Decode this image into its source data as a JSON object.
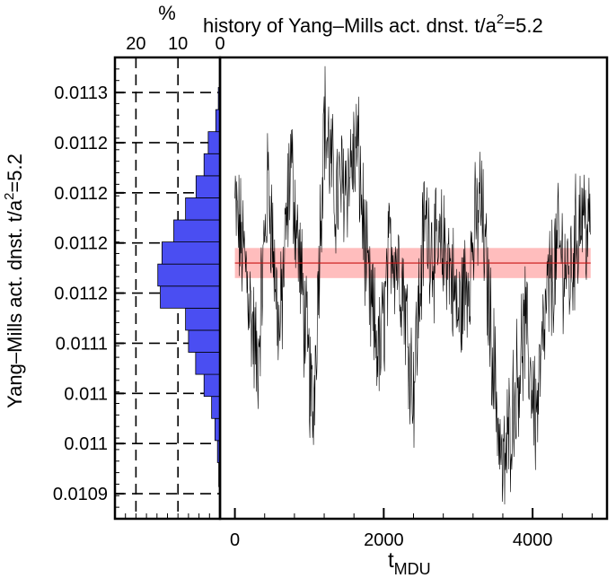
{
  "chart_data": [
    {
      "type": "bar",
      "orientation": "horizontal",
      "title": "%",
      "xlabel": "%",
      "ylabel": "Yang–Mills act. dnst. t/a",
      "ylabel_sup": "2",
      "ylabel_suffix": "=5.2",
      "x_ticks": [
        "20",
        "10",
        "0"
      ],
      "x_tick_values": [
        20,
        10,
        0
      ],
      "xlim": [
        25,
        0
      ],
      "y_tick_labels": [
        "0.0113",
        "0.0112",
        "0.0112",
        "0.0112",
        "0.0112",
        "0.0111",
        "0.011",
        "0.011",
        "0.0109"
      ],
      "y_tick_values": [
        0.011325,
        0.011275,
        0.011225,
        0.011175,
        0.011125,
        0.011075,
        0.011025,
        0.010975,
        0.010925
      ],
      "ylim": [
        0.0109,
        0.01136
      ],
      "bin_edges": [
        0.010932,
        0.010956,
        0.010978,
        0.011,
        0.011022,
        0.011044,
        0.011066,
        0.011088,
        0.01111,
        0.011132,
        0.011154,
        0.011176,
        0.011198,
        0.01122,
        0.011242,
        0.011264,
        0.011286,
        0.011308,
        0.01133
      ],
      "values": [
        0.3,
        0.6,
        1.2,
        2.0,
        3.8,
        5.8,
        7.5,
        8.2,
        14.2,
        14.8,
        13.8,
        11.0,
        8.2,
        5.7,
        3.8,
        2.8,
        1.0,
        0.4
      ],
      "grid": true,
      "colors": {
        "fill": "#4a4ef2",
        "edge": "#000000"
      }
    },
    {
      "type": "line",
      "title": "history of Yang–Mills act. dnst. t/a",
      "title_sup": "2",
      "title_suffix": "=5.2",
      "xlabel": "t",
      "xlabel_sub": "MDU",
      "x_ticks": [
        "0",
        "2000",
        "4000"
      ],
      "x_tick_values": [
        0,
        2000,
        4000
      ],
      "xlim": [
        -200,
        5000
      ],
      "ylim": [
        0.0109,
        0.01136
      ],
      "x_range": [
        0,
        4780
      ],
      "mean": 0.011155,
      "error_band": [
        0.01114,
        0.01117
      ],
      "grid": false,
      "colors": {
        "line": "#000000",
        "mean": "#c81414",
        "band": "#ffb2b2"
      }
    }
  ]
}
